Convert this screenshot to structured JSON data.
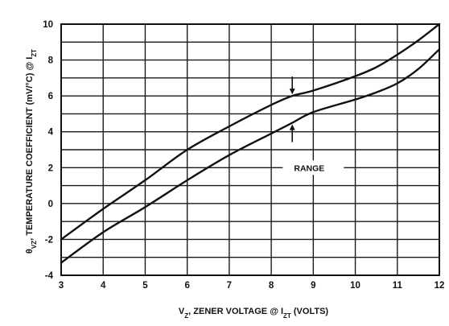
{
  "chart_data": {
    "type": "line",
    "title": "",
    "xlabel": {
      "prefix": "V",
      "prefix_sub": "Z",
      "mid": ", ZENER VOLTAGE @ I",
      "mid_sub": "ZT",
      "suffix": " (VOLTS)"
    },
    "ylabel": {
      "prefix": "θ",
      "prefix_sub": "VZ",
      "mid": ", TEMPERATURE COEFFICIENT (mV/°C) @ I",
      "mid_sub": "ZT"
    },
    "xlim": [
      3,
      12
    ],
    "ylim": [
      -4,
      10
    ],
    "xticks": [
      3,
      4,
      5,
      6,
      7,
      8,
      9,
      10,
      11,
      12
    ],
    "xtick_labels": [
      "3",
      "4",
      "5",
      "6",
      "7",
      "8",
      "9",
      "10",
      "11",
      "12"
    ],
    "yticks": [
      -4,
      -2,
      0,
      2,
      4,
      6,
      8,
      10
    ],
    "ytick_labels": [
      "-4",
      "-2",
      "0",
      "2",
      "4",
      "6",
      "8",
      "10"
    ],
    "grid": true,
    "series": [
      {
        "x": [
          3,
          4,
          5,
          6,
          7,
          8,
          8.5,
          9,
          10,
          10.5,
          11,
          11.5,
          12
        ],
        "y": [
          -2.0,
          -0.3,
          1.3,
          3.0,
          4.3,
          5.5,
          6.0,
          6.3,
          7.1,
          7.6,
          8.3,
          9.1,
          10.0
        ]
      },
      {
        "x": [
          3,
          4,
          5,
          6,
          7,
          8,
          8.5,
          9,
          10,
          10.5,
          11,
          11.5,
          12
        ],
        "y": [
          -3.3,
          -1.6,
          -0.2,
          1.3,
          2.7,
          3.9,
          4.5,
          5.1,
          5.8,
          6.2,
          6.7,
          7.5,
          8.6
        ]
      }
    ],
    "annotations": [
      {
        "text": "RANGE",
        "x": 9.0,
        "y": 2.0
      }
    ]
  }
}
